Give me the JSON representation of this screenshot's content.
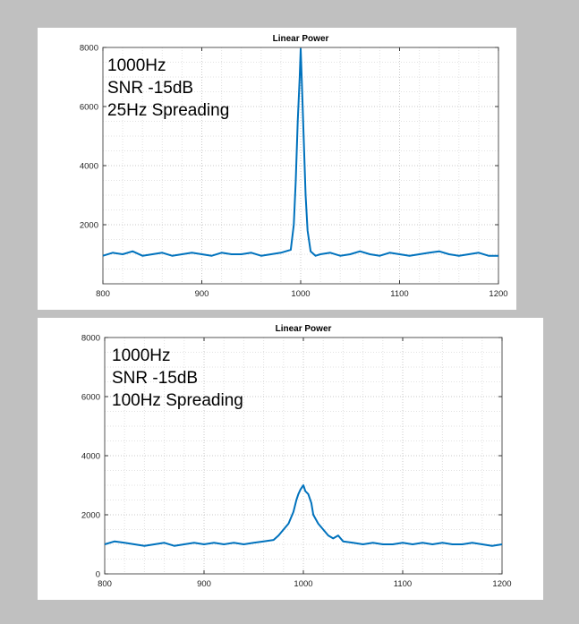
{
  "chart_data": [
    {
      "type": "line",
      "title": "Linear Power",
      "xlabel": "",
      "ylabel": "",
      "xlim": [
        800,
        1200
      ],
      "ylim": [
        0,
        8000
      ],
      "x_ticks": [
        800,
        900,
        1000,
        1100,
        1200
      ],
      "y_ticks": [
        2000,
        4000,
        6000,
        8000
      ],
      "grid": true,
      "annotation_lines": [
        "1000Hz",
        "SNR -15dB",
        "25Hz Spreading"
      ],
      "line_color": "#0072bd",
      "series": [
        {
          "x": [
            800,
            810,
            820,
            830,
            840,
            850,
            860,
            870,
            880,
            890,
            900,
            910,
            920,
            930,
            940,
            950,
            960,
            970,
            980,
            985,
            990,
            993,
            995,
            997,
            999,
            1000,
            1001,
            1003,
            1005,
            1007,
            1010,
            1015,
            1020,
            1030,
            1040,
            1050,
            1060,
            1070,
            1080,
            1090,
            1100,
            1110,
            1120,
            1130,
            1140,
            1150,
            1160,
            1170,
            1180,
            1190,
            1200
          ],
          "values": [
            950,
            1050,
            1000,
            1100,
            950,
            1000,
            1050,
            950,
            1000,
            1050,
            1000,
            950,
            1050,
            1000,
            1000,
            1050,
            950,
            1000,
            1050,
            1100,
            1150,
            2000,
            3500,
            5500,
            7000,
            7950,
            7000,
            5000,
            3000,
            1800,
            1100,
            950,
            1000,
            1050,
            950,
            1000,
            1100,
            1000,
            950,
            1050,
            1000,
            950,
            1000,
            1050,
            1100,
            1000,
            950,
            1000,
            1050,
            950,
            950
          ]
        }
      ]
    },
    {
      "type": "line",
      "title": "Linear Power",
      "xlabel": "",
      "ylabel": "",
      "xlim": [
        800,
        1200
      ],
      "ylim": [
        0,
        8000
      ],
      "x_ticks": [
        800,
        900,
        1000,
        1100,
        1200
      ],
      "y_ticks": [
        0,
        2000,
        4000,
        6000,
        8000
      ],
      "grid": true,
      "annotation_lines": [
        "1000Hz",
        "SNR -15dB",
        "100Hz Spreading"
      ],
      "line_color": "#0072bd",
      "series": [
        {
          "x": [
            800,
            810,
            820,
            830,
            840,
            850,
            860,
            870,
            880,
            890,
            900,
            910,
            920,
            930,
            940,
            950,
            960,
            970,
            975,
            980,
            985,
            990,
            993,
            995,
            997,
            999,
            1000,
            1002,
            1005,
            1008,
            1010,
            1015,
            1020,
            1025,
            1030,
            1035,
            1040,
            1050,
            1060,
            1070,
            1080,
            1090,
            1100,
            1110,
            1120,
            1130,
            1140,
            1150,
            1160,
            1170,
            1180,
            1190,
            1200
          ],
          "values": [
            1000,
            1100,
            1050,
            1000,
            950,
            1000,
            1050,
            950,
            1000,
            1050,
            1000,
            1050,
            1000,
            1050,
            1000,
            1050,
            1100,
            1150,
            1300,
            1500,
            1700,
            2100,
            2500,
            2700,
            2850,
            2950,
            3000,
            2800,
            2700,
            2400,
            2000,
            1700,
            1500,
            1300,
            1200,
            1300,
            1100,
            1050,
            1000,
            1050,
            1000,
            1000,
            1050,
            1000,
            1050,
            1000,
            1050,
            1000,
            1000,
            1050,
            1000,
            950,
            1000
          ]
        }
      ]
    }
  ]
}
